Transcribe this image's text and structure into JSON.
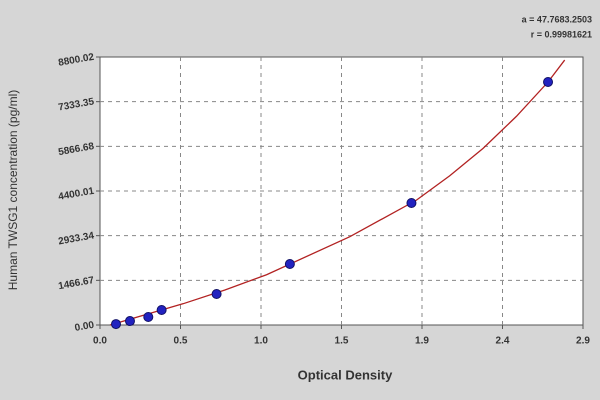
{
  "chart_data": {
    "type": "scatter",
    "x_label": "Optical Density",
    "y_label": "Human TWSG1 concentration (pg/ml)",
    "annotations": [
      "a = 47.7683.2503",
      "r = 0.99981621"
    ],
    "x": [
      0.096,
      0.18,
      0.29,
      0.37,
      0.7,
      1.14,
      1.87,
      2.69
    ],
    "values": [
      30,
      130,
      263,
      493,
      1018,
      2003,
      4006,
      7979
    ],
    "color": "#2222c0",
    "fit": {
      "color": "#b22222",
      "x": [
        0.06,
        0.5,
        0.75,
        1.0,
        1.5,
        1.9,
        2.1,
        2.3,
        2.5,
        2.69,
        2.79
      ],
      "values": [
        0,
        700,
        1150,
        1650,
        2900,
        4100,
        4900,
        5800,
        6850,
        7979,
        8700
      ]
    },
    "xlim": [
      0,
      2.9
    ],
    "xticks": [
      {
        "value": 0,
        "label": "0.0"
      },
      {
        "value": 0.4833,
        "label": "0.5"
      },
      {
        "value": 0.9667,
        "label": "1.0"
      },
      {
        "value": 1.45,
        "label": "1.5"
      },
      {
        "value": 1.9333,
        "label": "1.9"
      },
      {
        "value": 2.4167,
        "label": "2.4"
      },
      {
        "value": 2.9,
        "label": "2.9"
      }
    ],
    "ylim": [
      0,
      8800.02
    ],
    "yticks": [
      {
        "value": 0,
        "label": "0.00"
      },
      1466.67,
      2933.34,
      4400.01,
      5866.68,
      7333.35,
      8800.02
    ],
    "grid": true
  }
}
